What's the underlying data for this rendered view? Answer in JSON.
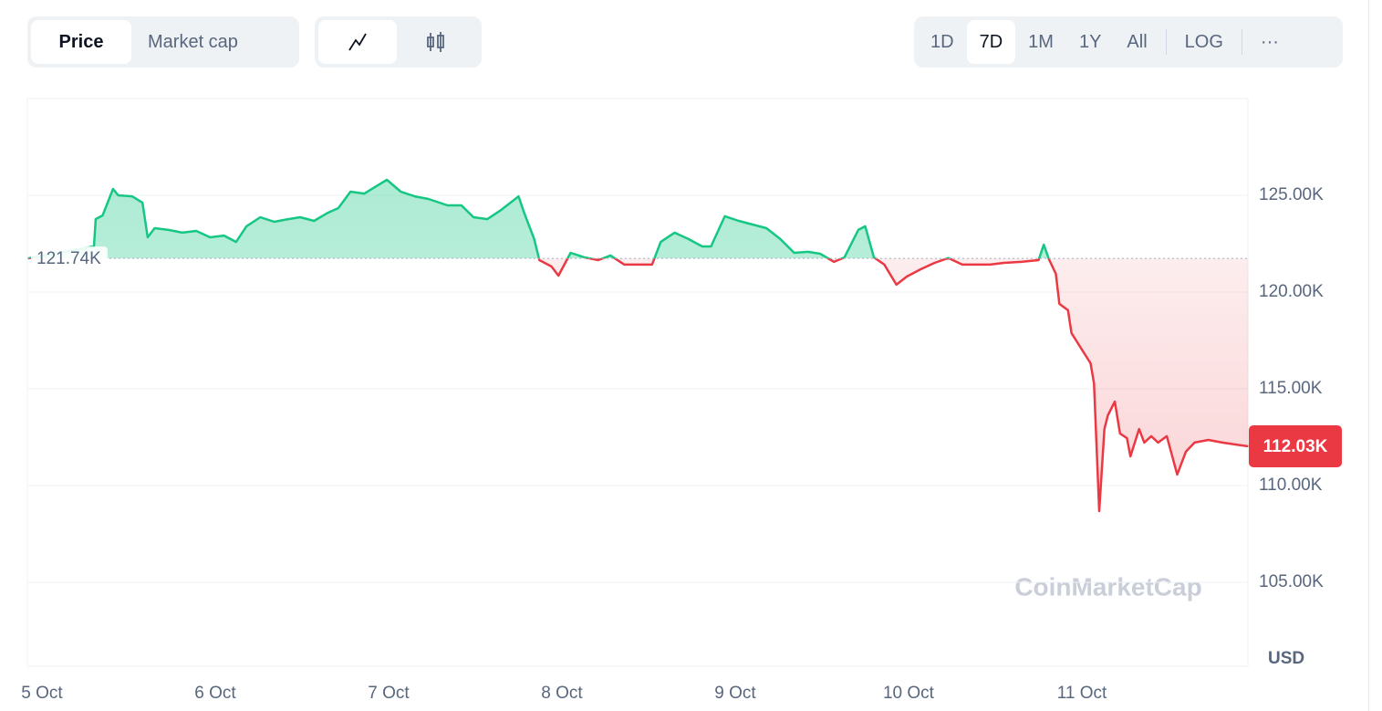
{
  "toolbar": {
    "views": [
      "Price",
      "Market cap"
    ],
    "ranges": [
      "1D",
      "7D",
      "1M",
      "1Y",
      "All"
    ],
    "scale": "LOG",
    "more": "···"
  },
  "chart_data": {
    "type": "line",
    "xlim": [
      4.916,
      11.958
    ],
    "xticks": [
      {
        "value": 5,
        "label": "5 Oct"
      },
      {
        "value": 6,
        "label": "6 Oct"
      },
      {
        "value": 7,
        "label": "7 Oct"
      },
      {
        "value": 8,
        "label": "8 Oct"
      },
      {
        "value": 9,
        "label": "9 Oct"
      },
      {
        "value": 10,
        "label": "10 Oct"
      },
      {
        "value": 11,
        "label": "11 Oct"
      }
    ],
    "ylim": [
      100660,
      130000
    ],
    "yticks": [
      {
        "value": 105000,
        "label": "105.00K"
      },
      {
        "value": 110000,
        "label": "110.00K"
      },
      {
        "value": 115000,
        "label": "115.00K"
      },
      {
        "value": 120000,
        "label": "120.00K"
      },
      {
        "value": 125000,
        "label": "125.00K"
      }
    ],
    "grid": true,
    "y_unit": "USD",
    "watermark": "CoinMarketCap",
    "baseline": {
      "value": 121740,
      "label": "121.74K"
    },
    "current": {
      "value": 112030,
      "label": "112.03K"
    },
    "up_color": "#16c784",
    "down_color": "#ea3943",
    "series": [
      {
        "x": [
          4.92,
          5.3,
          5.31,
          5.35,
          5.41,
          5.44,
          5.52,
          5.58,
          5.61,
          5.65,
          5.73,
          5.81,
          5.89,
          5.97,
          6.05,
          6.12,
          6.18,
          6.26,
          6.34,
          6.42,
          6.49,
          6.57,
          6.65,
          6.71,
          6.78,
          6.86,
          6.92,
          6.99,
          7.07,
          7.15,
          7.23,
          7.34,
          7.42,
          7.49,
          7.57,
          7.65,
          7.75,
          7.78,
          7.84,
          7.87,
          7.94,
          7.98,
          8.05,
          8.13,
          8.21,
          8.28,
          8.36,
          8.44,
          8.52,
          8.57,
          8.65,
          8.73,
          8.81,
          8.86,
          8.94,
          9.02,
          9.1,
          9.18,
          9.26,
          9.34,
          9.42,
          9.49,
          9.57,
          9.63,
          9.71,
          9.75,
          9.8,
          9.86,
          9.93,
          9.99,
          10.07,
          10.15,
          10.23,
          10.31,
          10.39,
          10.47,
          10.55,
          10.65,
          10.75,
          10.78,
          10.81,
          10.85,
          10.87,
          10.92,
          10.94,
          10.99,
          11.05,
          11.07,
          11.1,
          11.13,
          11.15,
          11.19,
          11.22,
          11.26,
          11.28,
          11.33,
          11.36,
          11.4,
          11.44,
          11.49,
          11.55,
          11.6,
          11.65,
          11.73,
          11.81,
          11.89,
          11.96
        ],
        "values": [
          121740,
          122360,
          123770,
          123960,
          125330,
          125000,
          124950,
          124620,
          122830,
          123300,
          123210,
          123070,
          123160,
          122830,
          122920,
          122590,
          123400,
          123870,
          123630,
          123770,
          123870,
          123680,
          124100,
          124340,
          125190,
          125090,
          125420,
          125800,
          125190,
          124950,
          124810,
          124480,
          124480,
          123870,
          123770,
          124250,
          124950,
          124150,
          122740,
          121650,
          121320,
          120850,
          122030,
          121790,
          121650,
          121890,
          121420,
          121420,
          121420,
          122590,
          123070,
          122740,
          122360,
          122360,
          123920,
          123680,
          123490,
          123300,
          122740,
          122030,
          122080,
          121980,
          121560,
          121790,
          123210,
          123400,
          121790,
          121420,
          120380,
          120800,
          121180,
          121510,
          121760,
          121420,
          121420,
          121420,
          121510,
          121560,
          121650,
          122450,
          121700,
          120940,
          119390,
          119060,
          117880,
          117170,
          116320,
          115280,
          108680,
          112920,
          113630,
          114340,
          112690,
          112450,
          111510,
          112920,
          112220,
          112550,
          112220,
          112550,
          110570,
          111750,
          112220,
          112360,
          112220,
          112120,
          112030
        ]
      }
    ]
  }
}
